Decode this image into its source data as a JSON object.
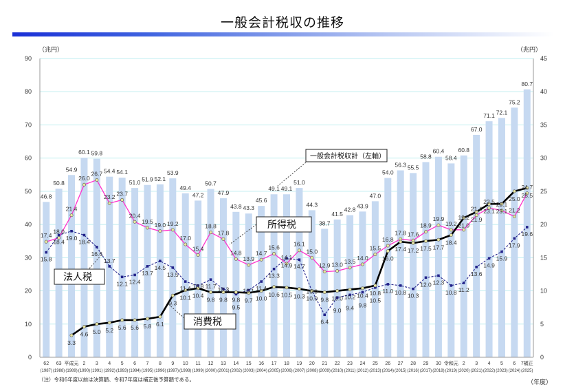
{
  "title": "一般会計税収の推移",
  "left_unit": "（兆円）",
  "right_unit": "（兆円）",
  "x_unit": "（年度）",
  "note": "（注）令和6年度以前は決算額、令和7年度は補正後予算額である。",
  "colors": {
    "bars": "#c6d9f1",
    "income_tax": "#ff33cc",
    "corporate_tax": "#22228a",
    "consumption_tax": "#000000",
    "grid": "#bfeef0"
  },
  "chart_data": {
    "type": "bar+line",
    "title": "一般会計税収の推移",
    "categories": [
      "62",
      "63",
      "平成元",
      "2",
      "3",
      "4",
      "5",
      "6",
      "7",
      "8",
      "9",
      "10",
      "11",
      "12",
      "13",
      "14",
      "15",
      "16",
      "17",
      "18",
      "19",
      "20",
      "21",
      "22",
      "23",
      "24",
      "25",
      "26",
      "27",
      "28",
      "29",
      "30",
      "令和元",
      "2",
      "3",
      "4",
      "5",
      "6",
      "7補正"
    ],
    "years": [
      "(1987)",
      "(1988)",
      "(1989)",
      "(1990)",
      "(1991)",
      "(1992)",
      "(1993)",
      "(1994)",
      "(1995)",
      "(1996)",
      "(1997)",
      "(1998)",
      "(1999)",
      "(2000)",
      "(2001)",
      "(2002)",
      "(2003)",
      "(2004)",
      "(2005)",
      "(2006)",
      "(2007)",
      "(2008)",
      "(2009)",
      "(2010)",
      "(2011)",
      "(2012)",
      "(2013)",
      "(2014)",
      "(2015)",
      "(2016)",
      "(2017)",
      "(2018)",
      "(2019)",
      "(2020)",
      "(2021)",
      "(2022)",
      "(2023)",
      "(2024)",
      "(2025)"
    ],
    "ylim_left": [
      0,
      90
    ],
    "yticks_left": [
      0,
      10,
      20,
      30,
      40,
      50,
      60,
      70,
      80,
      90
    ],
    "ylim_right": [
      0,
      45
    ],
    "yticks_right": [
      0,
      5,
      10,
      15,
      20,
      25,
      30,
      35,
      40,
      45
    ],
    "grid": true,
    "series": [
      {
        "name": "一般会計税収計（左軸）",
        "type": "bar",
        "axis": "left",
        "values": [
          46.8,
          50.8,
          54.9,
          60.1,
          59.8,
          54.4,
          54.1,
          51.0,
          51.9,
          52.1,
          53.9,
          49.4,
          47.2,
          50.7,
          47.9,
          43.8,
          43.3,
          45.6,
          49.1,
          49.1,
          51.0,
          44.3,
          38.7,
          41.5,
          42.8,
          43.9,
          47.0,
          54.0,
          56.3,
          55.5,
          58.8,
          60.4,
          58.4,
          60.8,
          67.0,
          71.1,
          72.1,
          75.2,
          80.7
        ]
      },
      {
        "name": "所得税",
        "type": "line",
        "axis": "right",
        "values": [
          17.4,
          18.0,
          21.4,
          26.0,
          26.7,
          23.2,
          23.7,
          20.4,
          19.5,
          19.0,
          19.2,
          17.0,
          15.4,
          18.8,
          17.8,
          14.8,
          13.9,
          14.7,
          15.6,
          14.1,
          16.1,
          15.0,
          12.9,
          13.0,
          13.5,
          14.0,
          15.5,
          16.8,
          17.8,
          17.6,
          18.9,
          19.9,
          19.2,
          19.2,
          21.4,
          22.5,
          22.1,
          21.2,
          24.7
        ]
      },
      {
        "name": "法人税",
        "type": "line",
        "axis": "right",
        "values": [
          15.8,
          18.4,
          19.0,
          18.4,
          16.6,
          13.7,
          12.1,
          12.4,
          13.7,
          14.5,
          13.5,
          11.4,
          10.8,
          11.7,
          10.3,
          9.5,
          10.1,
          11.4,
          13.3,
          14.9,
          14.7,
          10.0,
          6.4,
          9.0,
          9.4,
          9.8,
          10.5,
          11.0,
          10.8,
          10.3,
          12.0,
          12.3,
          10.8,
          11.2,
          13.6,
          14.9,
          15.9,
          17.9,
          19.6
        ]
      },
      {
        "name": "消費税",
        "type": "line",
        "axis": "right",
        "values": [
          null,
          null,
          3.3,
          4.6,
          5.0,
          5.2,
          5.6,
          5.6,
          5.8,
          6.1,
          9.3,
          10.1,
          10.4,
          9.8,
          9.8,
          9.8,
          9.7,
          10.0,
          10.6,
          10.5,
          10.3,
          10.0,
          9.8,
          10.0,
          10.2,
          10.4,
          10.8,
          16.0,
          17.4,
          17.2,
          17.5,
          17.7,
          18.4,
          21.0,
          21.9,
          23.1,
          23.1,
          25.0,
          25.5
        ]
      }
    ]
  }
}
